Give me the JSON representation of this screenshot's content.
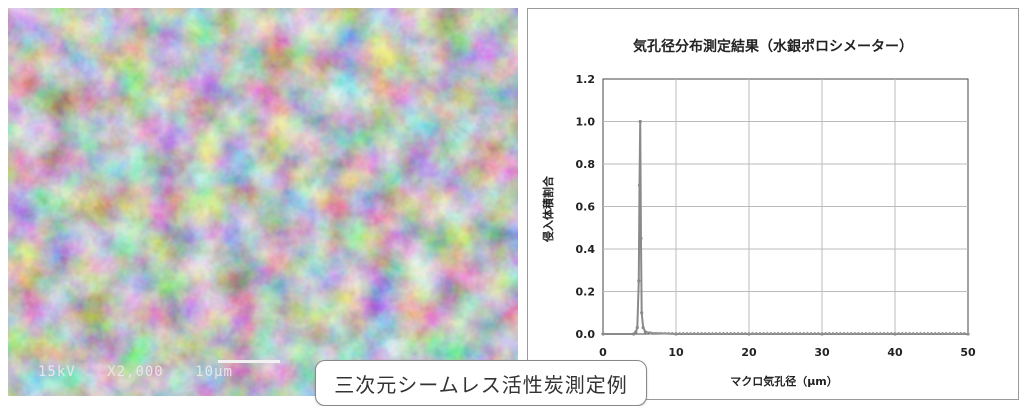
{
  "sem_image": {
    "voltage_label": "15kV",
    "magnification_label": "X2,000",
    "scale_label": "10μm"
  },
  "caption": "三次元シームレス活性炭測定例",
  "chart_data": {
    "type": "line",
    "title": "気孔径分布測定結果（水銀ポロシメーター）",
    "xlabel": "マクロ気孔径（μm）",
    "ylabel": "侵入体積割合",
    "xlim": [
      0,
      50
    ],
    "ylim": [
      0,
      1.2
    ],
    "x_ticks": [
      "0",
      "10",
      "20",
      "30",
      "40",
      "50"
    ],
    "y_ticks": [
      "0.0",
      "0.2",
      "0.4",
      "0.6",
      "0.8",
      "1.0",
      "1.2"
    ],
    "grid": true,
    "legend": "none",
    "series": [
      {
        "color": "#8a8a8a",
        "x": [
          0,
          4.2,
          4.5,
          4.7,
          4.9,
          5.0,
          5.1,
          5.2,
          5.3,
          5.5,
          5.8,
          6.5,
          10,
          20,
          30,
          40,
          50
        ],
        "y": [
          0,
          0,
          0.01,
          0.03,
          0.25,
          0.7,
          1.0,
          0.45,
          0.1,
          0.03,
          0.01,
          0.005,
          0,
          0,
          0,
          0,
          0
        ]
      }
    ]
  }
}
